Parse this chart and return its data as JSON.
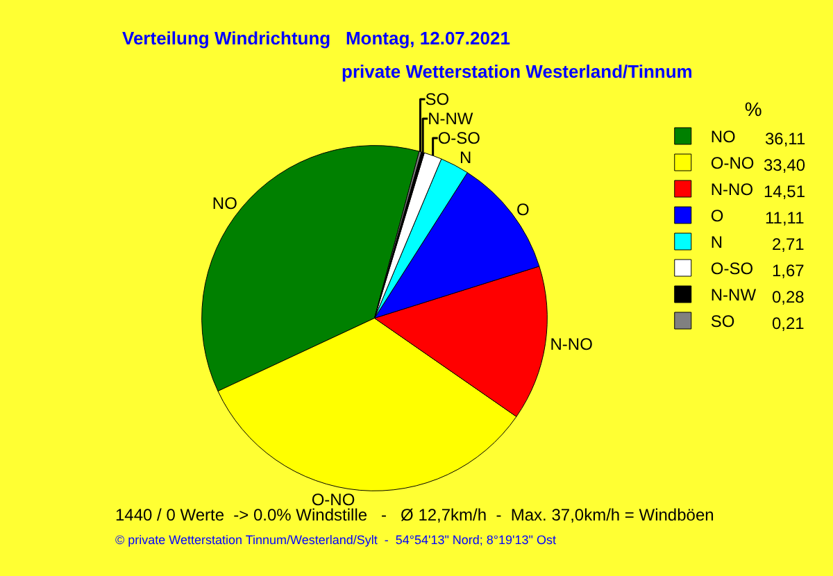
{
  "chart_data": {
    "type": "pie",
    "title": "Verteilung Windrichtung   Montag, 12.07.2021",
    "subtitle": "private Wetterstation Westerland/Tinnum",
    "legend_title": "%",
    "categories": [
      "NO",
      "O-NO",
      "N-NO",
      "O",
      "N",
      "O-SO",
      "N-NW",
      "SO"
    ],
    "values": [
      36.11,
      33.4,
      14.51,
      11.11,
      2.71,
      1.67,
      0.28,
      0.21
    ],
    "value_labels": [
      "36,11",
      "33,40",
      "14,51",
      "11,11",
      "2,71",
      "1,67",
      "0,28",
      "0,21"
    ],
    "colors": [
      "#008000",
      "#ffff00",
      "#ff0000",
      "#0000ff",
      "#00ffff",
      "#ffffff",
      "#000000",
      "#808080"
    ],
    "legend": "top right",
    "annotations": [
      "1440 / 0 Werte  -> 0.0% Windstille   -   Ø 12,7km/h  -  Max. 37,0km/h = Windböen",
      "© private Wetterstation Tinnum/Westerland/Sylt  -  54°54'13\" Nord; 8°19'13\" Ost"
    ]
  }
}
